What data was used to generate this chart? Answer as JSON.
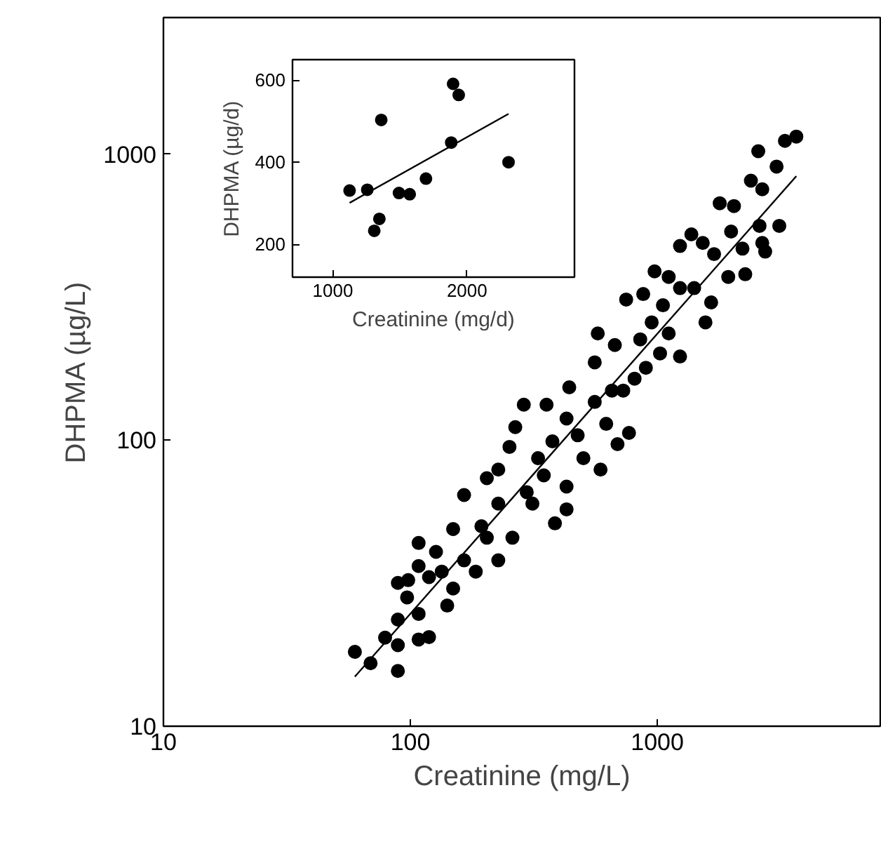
{
  "chart_data": [
    {
      "type": "scatter",
      "xlabel": "Creatinine (mg/L)",
      "ylabel": "DHPMA (µg/L)",
      "log": "xy",
      "xlim": [
        10,
        8000
      ],
      "ylim": [
        10,
        3000
      ],
      "xticks": [
        10,
        100,
        1000
      ],
      "yticks": [
        10,
        100,
        1000
      ],
      "grid": false,
      "marker": "circle",
      "series": [
        {
          "color": "#000000",
          "x": [
            59.6,
            69,
            89,
            79,
            89,
            89,
            89,
            98,
            97,
            108,
            108,
            108,
            119,
            119,
            108,
            127,
            141,
            149,
            149,
            165,
            165,
            184,
            194,
            204,
            227,
            227,
            227,
            252,
            259,
            266,
            288,
            296,
            329,
            356,
            385,
            376,
            429,
            429,
            429,
            440,
            502,
            558,
            574,
            589,
            621,
            673,
            728,
            768,
            690,
            748,
            809,
            877,
            899,
            975,
            1026,
            1054,
            1112,
            1236,
            1236,
            1374,
            1410,
            1567,
            1652,
            1698,
            1790,
            1938,
            1990,
            2044,
            2213,
            2271,
            2394,
            2594,
            2661,
            2564,
            2661,
            3041,
            3119,
            3288,
            3656,
            2735,
            558,
            347,
            476,
            949,
            1236,
            1528,
            1112,
            655,
            312,
            204,
            134,
            853
          ],
          "values": [
            18.2,
            16.6,
            15.6,
            20.4,
            23.6,
            19.2,
            31.7,
            32.4,
            28.2,
            43.7,
            36.3,
            20.1,
            20.5,
            33.2,
            24.7,
            40.7,
            26.4,
            30.3,
            48.9,
            64.3,
            38,
            34.7,
            50,
            73.6,
            38,
            60,
            78.9,
            94.7,
            45.6,
            111,
            133,
            65.8,
            86.5,
            133,
            51.2,
            99,
            57.3,
            68.8,
            119,
            153,
            86.5,
            187,
            236,
            78.9,
            114,
            215,
            149,
            106,
            96.8,
            310,
            164,
            324,
            179,
            389,
            201,
            296,
            372,
            477,
            196,
            524,
            340,
            258,
            303,
            447,
            673,
            372,
            536,
            658,
            467,
            380,
            807,
            561,
            753,
            1023,
            489,
            904,
            561,
            1112,
            1151,
            456,
            136,
            75.3,
            104,
            258,
            340,
            489,
            236,
            149,
            60,
            45.6,
            34.7,
            225
          ]
        },
        {
          "type": "line",
          "color": "#000000",
          "marker": "none",
          "x": [
            59.6,
            3656
          ],
          "values": [
            14.9,
            837
          ]
        }
      ]
    },
    {
      "type": "scatter",
      "xlabel": "Creatinine (mg/d)",
      "ylabel": "DHPMA (µg/d)",
      "xlim": [
        700,
        2800
      ],
      "ylim": [
        120,
        650
      ],
      "xticks": [
        1000,
        2000
      ],
      "yticks": [
        200,
        400,
        600
      ],
      "grid": false,
      "marker": "circle",
      "series": [
        {
          "color": "#000000",
          "x": [
            1125,
            1257,
            1347,
            1309,
            1361,
            1493,
            1573,
            1694,
            1882,
            1896,
            1938,
            2309
          ],
          "values": [
            331,
            333,
            262,
            233,
            503,
            325,
            322,
            360,
            448,
            591,
            564,
            400
          ]
        },
        {
          "type": "line",
          "color": "#000000",
          "marker": "none",
          "x": [
            1125,
            2309
          ],
          "values": [
            301,
            518
          ]
        }
      ]
    }
  ]
}
